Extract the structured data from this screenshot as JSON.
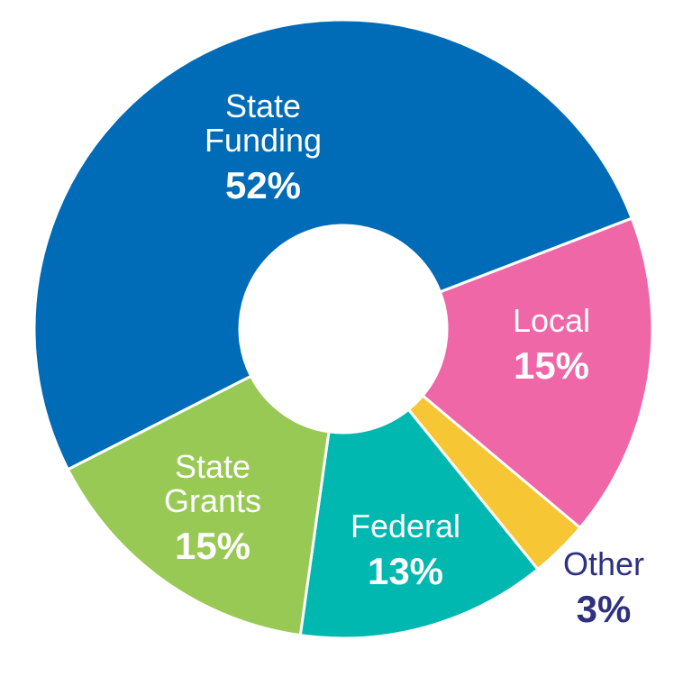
{
  "chart_data": {
    "type": "pie",
    "variant": "donut",
    "title": "",
    "slices": [
      {
        "label_lines": [
          "Local"
        ],
        "value": 15,
        "display": "15%",
        "color": "#ef67a7",
        "text_color": "#ffffff"
      },
      {
        "label_lines": [
          "Other"
        ],
        "value": 3,
        "display": "3%",
        "color": "#f6c635",
        "text_color": "#2e3081"
      },
      {
        "label_lines": [
          "Federal"
        ],
        "value": 13,
        "display": "13%",
        "color": "#00b8b0",
        "text_color": "#ffffff"
      },
      {
        "label_lines": [
          "State",
          "Grants"
        ],
        "value": 15,
        "display": "15%",
        "color": "#99c955",
        "text_color": "#ffffff"
      },
      {
        "label_lines": [
          "State",
          "Funding"
        ],
        "value": 52,
        "display": "52%",
        "color": "#006bb6",
        "text_color": "#ffffff"
      }
    ],
    "unit": "%"
  }
}
